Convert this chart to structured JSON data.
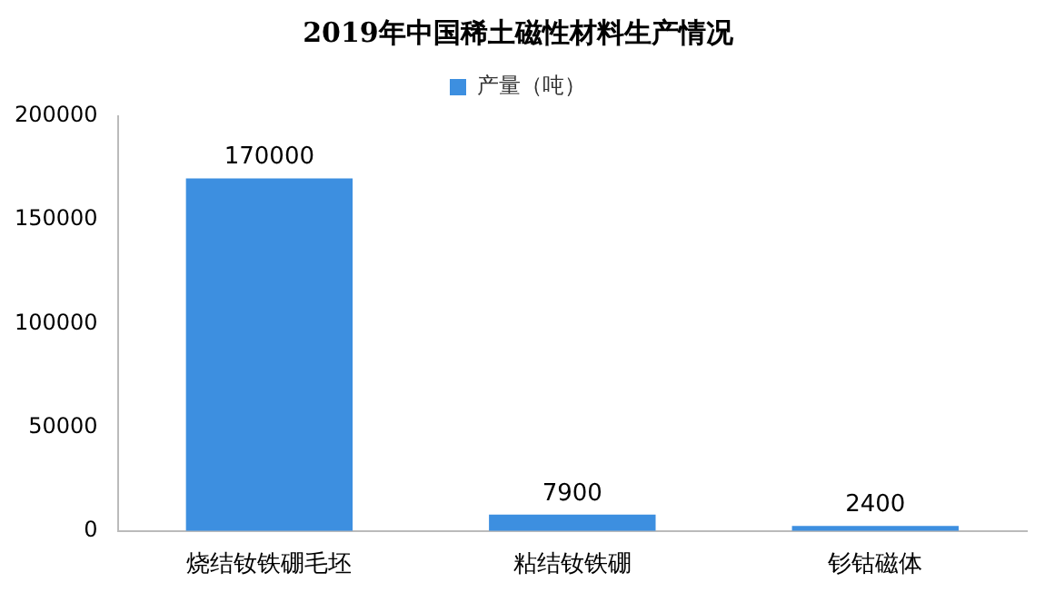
{
  "chart_data": {
    "type": "bar",
    "title": "2019年中国稀土磁性材料生产情况",
    "categories": [
      "烧结钕铁硼毛坯",
      "粘结钕铁硼",
      "钐钴磁体"
    ],
    "series": [
      {
        "name": "产量（吨）",
        "color": "#3d8fe0",
        "values": [
          170000,
          7900,
          2400
        ]
      }
    ],
    "ylim": [
      0,
      200000
    ],
    "yticks": [
      0,
      50000,
      100000,
      150000,
      200000
    ],
    "grid": false,
    "legend": "top",
    "data_labels": true
  }
}
